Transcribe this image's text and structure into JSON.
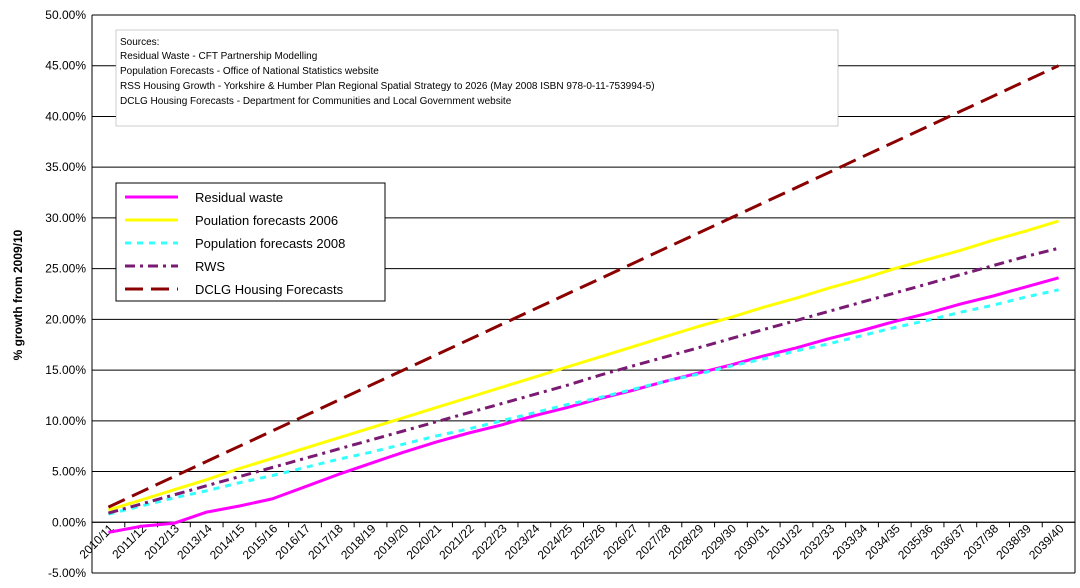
{
  "chart_data": {
    "type": "line",
    "title": "",
    "xlabel": "",
    "ylabel": "% growth from 2009/10",
    "ylim": [
      -5,
      50
    ],
    "yticks": [
      -5,
      0,
      5,
      10,
      15,
      20,
      25,
      30,
      35,
      40,
      45,
      50
    ],
    "ytick_labels": [
      "-5.00%",
      "0.00%",
      "5.00%",
      "10.00%",
      "15.00%",
      "20.00%",
      "25.00%",
      "30.00%",
      "35.00%",
      "40.00%",
      "45.00%",
      "50.00%"
    ],
    "grid": "horizontal",
    "legend_position": "upper-left",
    "categories": [
      "2010/11",
      "2011/12",
      "2012/13",
      "2013/14",
      "2014/15",
      "2015/16",
      "2016/17",
      "2017/18",
      "2018/19",
      "2019/20",
      "2020/21",
      "2021/22",
      "2022/23",
      "2023/24",
      "2024/25",
      "2025/26",
      "2026/27",
      "2027/28",
      "2028/29",
      "2029/30",
      "2030/31",
      "2031/32",
      "2032/33",
      "2033/34",
      "2034/35",
      "2035/36",
      "2036/37",
      "2037/38",
      "2038/39",
      "2039/40"
    ],
    "series": [
      {
        "name": "Residual waste",
        "color": "#ff00ff",
        "dash": "solid",
        "values": [
          -1.0,
          -0.4,
          -0.1,
          1.0,
          1.6,
          2.3,
          3.5,
          4.7,
          5.8,
          6.9,
          7.9,
          8.8,
          9.6,
          10.5,
          11.3,
          12.2,
          13.0,
          13.9,
          14.7,
          15.5,
          16.4,
          17.2,
          18.1,
          18.9,
          19.8,
          20.6,
          21.5,
          22.3,
          23.2,
          24.1
        ]
      },
      {
        "name": "Poulation forecasts 2006",
        "color": "#ffff00",
        "dash": "solid",
        "values": [
          1.2,
          2.2,
          3.2,
          4.2,
          5.3,
          6.3,
          7.3,
          8.3,
          9.3,
          10.3,
          11.3,
          12.3,
          13.3,
          14.3,
          15.3,
          16.3,
          17.3,
          18.3,
          19.3,
          20.2,
          21.2,
          22.1,
          23.1,
          24.0,
          25.0,
          25.9,
          26.8,
          27.8,
          28.7,
          29.7
        ]
      },
      {
        "name": "Population forecasts 2008",
        "color": "#33ffff",
        "dash": "dots",
        "values": [
          0.8,
          1.6,
          2.4,
          3.1,
          3.9,
          4.6,
          5.4,
          6.2,
          6.9,
          7.7,
          8.5,
          9.2,
          10.0,
          10.8,
          11.6,
          12.3,
          13.1,
          13.9,
          14.6,
          15.4,
          16.1,
          16.9,
          17.6,
          18.4,
          19.2,
          19.9,
          20.7,
          21.4,
          22.2,
          22.9
        ]
      },
      {
        "name": "RWS",
        "color": "#7a1a72",
        "dash": "dashdot",
        "values": [
          0.9,
          1.8,
          2.7,
          3.6,
          4.5,
          5.4,
          6.3,
          7.2,
          8.1,
          9.0,
          9.9,
          10.8,
          11.7,
          12.6,
          13.5,
          14.5,
          15.4,
          16.3,
          17.2,
          18.1,
          19.0,
          19.9,
          20.8,
          21.7,
          22.6,
          23.5,
          24.4,
          25.3,
          26.2,
          27.0
        ]
      },
      {
        "name": "DCLG Housing Forecasts",
        "color": "#8b0000",
        "dash": "longdash",
        "values": [
          1.5,
          3.0,
          4.5,
          6.0,
          7.5,
          9.0,
          10.5,
          12.0,
          13.5,
          15.0,
          16.5,
          18.0,
          19.5,
          21.0,
          22.5,
          24.0,
          25.5,
          27.0,
          28.5,
          30.0,
          31.5,
          33.0,
          34.5,
          36.0,
          37.5,
          39.0,
          40.5,
          42.0,
          43.5,
          45.0
        ]
      }
    ],
    "annotation": {
      "lines": [
        "Sources:",
        "Residual Waste - CFT Partnership Modelling",
        "Population Forecasts - Office of National Statistics website",
        "RSS Housing Growth - Yorkshire & Humber Plan Regional Spatial Strategy to 2026 (May 2008 ISBN 978-0-11-753994-5)",
        "DCLG Housing Forecasts - Department for Communities and Local Government website"
      ]
    }
  }
}
